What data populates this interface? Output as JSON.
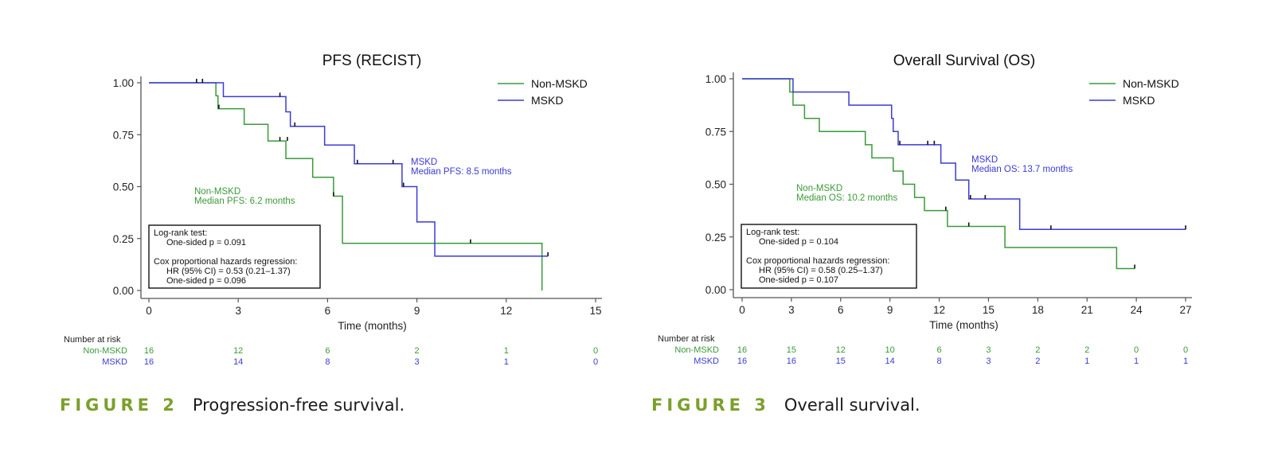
{
  "chart_data": [
    {
      "type": "line",
      "subtype": "kaplan-meier",
      "title": "PFS (RECIST)",
      "xlabel": "Time (months)",
      "ylabel": "",
      "xlim": [
        0,
        15
      ],
      "ylim": [
        0,
        1
      ],
      "xticks": [
        "0",
        "3",
        "6",
        "9",
        "12",
        "15"
      ],
      "xtick_values": [
        0,
        3,
        6,
        9,
        12,
        15
      ],
      "yticks": [
        "0.00",
        "0.25",
        "0.50",
        "0.75",
        "1.00"
      ],
      "ytick_values": [
        0,
        0.25,
        0.5,
        0.75,
        1.0
      ],
      "grid": false,
      "legend": {
        "position": "top-right",
        "entries": [
          "Non-MSKD",
          "MSKD"
        ]
      },
      "series": [
        {
          "name": "Non-MSKD",
          "color": "#3a9a3a",
          "steps": [
            [
              0,
              1.0
            ],
            [
              2.25,
              0.9375
            ],
            [
              2.32,
              0.875
            ],
            [
              3.2,
              0.8
            ],
            [
              4.0,
              0.72
            ],
            [
              4.6,
              0.635
            ],
            [
              5.5,
              0.545
            ],
            [
              6.2,
              0.454
            ],
            [
              6.5,
              0.227
            ],
            [
              13.2,
              0.0
            ]
          ],
          "end": 13.2,
          "censored": [
            [
              2.35,
              0.875
            ],
            [
              4.4,
              0.72
            ],
            [
              4.65,
              0.72
            ],
            [
              6.2,
              0.454
            ],
            [
              10.8,
              0.227
            ]
          ],
          "annotation": [
            "Non-MSKD",
            "Median PFS: 6.2 months"
          ]
        },
        {
          "name": "MSKD",
          "color": "#3b3bd4",
          "steps": [
            [
              0,
              1.0
            ],
            [
              2.5,
              0.9333
            ],
            [
              4.6,
              0.86
            ],
            [
              4.75,
              0.79
            ],
            [
              5.9,
              0.7
            ],
            [
              6.9,
              0.61
            ],
            [
              8.5,
              0.5
            ],
            [
              9.0,
              0.33
            ],
            [
              9.6,
              0.165
            ]
          ],
          "end": 13.4,
          "censored": [
            [
              1.6,
              1.0
            ],
            [
              1.8,
              1.0
            ],
            [
              4.4,
              0.9333
            ],
            [
              4.9,
              0.79
            ],
            [
              7.0,
              0.61
            ],
            [
              8.2,
              0.61
            ],
            [
              8.55,
              0.5
            ],
            [
              13.4,
              0.165
            ]
          ],
          "annotation": [
            "MSKD",
            "Median PFS: 8.5 months"
          ]
        }
      ],
      "stats_box": [
        "Log-rank test:",
        "One-sided p = 0.091",
        "Cox proportional hazards regression:",
        "HR (95% CI) = 0.53 (0.21–1.37)",
        "One-sided p = 0.096"
      ],
      "risk_table": {
        "title": "Number at risk",
        "rows": [
          {
            "label": "Non-MSKD",
            "values": [
              "16",
              "12",
              "6",
              "2",
              "1",
              "0"
            ]
          },
          {
            "label": "MSKD",
            "values": [
              "16",
              "14",
              "8",
              "3",
              "1",
              "0"
            ]
          }
        ]
      },
      "caption": {
        "figure": "FIGURE 2",
        "text": "Progression-free survival."
      }
    },
    {
      "type": "line",
      "subtype": "kaplan-meier",
      "title": "Overall Survival (OS)",
      "xlabel": "Time (months)",
      "ylabel": "",
      "xlim": [
        0,
        27
      ],
      "ylim": [
        0,
        1
      ],
      "xticks": [
        "0",
        "3",
        "6",
        "9",
        "12",
        "15",
        "18",
        "21",
        "24",
        "27"
      ],
      "xtick_values": [
        0,
        3,
        6,
        9,
        12,
        15,
        18,
        21,
        24,
        27
      ],
      "yticks": [
        "0.00",
        "0.25",
        "0.50",
        "0.75",
        "1.00"
      ],
      "ytick_values": [
        0,
        0.25,
        0.5,
        0.75,
        1.0
      ],
      "grid": false,
      "legend": {
        "position": "top-right",
        "entries": [
          "Non-MSKD",
          "MSKD"
        ]
      },
      "series": [
        {
          "name": "Non-MSKD",
          "color": "#3a9a3a",
          "steps": [
            [
              0,
              1.0
            ],
            [
              2.9,
              0.9375
            ],
            [
              3.1,
              0.875
            ],
            [
              3.8,
              0.8125
            ],
            [
              4.7,
              0.75
            ],
            [
              7.5,
              0.6875
            ],
            [
              7.9,
              0.625
            ],
            [
              9.2,
              0.5625
            ],
            [
              9.8,
              0.5
            ],
            [
              10.5,
              0.4375
            ],
            [
              11.1,
              0.375
            ],
            [
              12.5,
              0.3
            ],
            [
              16.0,
              0.2
            ],
            [
              22.8,
              0.1
            ]
          ],
          "end": 23.9,
          "censored": [
            [
              12.4,
              0.375
            ],
            [
              13.8,
              0.3
            ],
            [
              23.9,
              0.1
            ]
          ],
          "annotation": [
            "Non-MSKD",
            "Median OS: 10.2 months"
          ]
        },
        {
          "name": "MSKD",
          "color": "#3b3bd4",
          "steps": [
            [
              0,
              1.0
            ],
            [
              3.1,
              0.9375
            ],
            [
              6.5,
              0.875
            ],
            [
              9.1,
              0.8125
            ],
            [
              9.2,
              0.75
            ],
            [
              9.5,
              0.6875
            ],
            [
              12.1,
              0.6
            ],
            [
              13.0,
              0.52
            ],
            [
              13.8,
              0.43
            ],
            [
              16.9,
              0.286
            ]
          ],
          "end": 27.0,
          "censored": [
            [
              9.6,
              0.6875
            ],
            [
              11.3,
              0.6875
            ],
            [
              11.7,
              0.6875
            ],
            [
              13.9,
              0.43
            ],
            [
              14.8,
              0.43
            ],
            [
              18.8,
              0.286
            ],
            [
              27.0,
              0.286
            ]
          ],
          "annotation": [
            "MSKD",
            "Median OS: 13.7 months"
          ]
        }
      ],
      "stats_box": [
        "Log-rank test:",
        "One-sided p = 0.104",
        "Cox proportional hazards regression:",
        "HR (95% CI) = 0.58 (0.25–1.37)",
        "One-sided p = 0.107"
      ],
      "risk_table": {
        "title": "Number at risk",
        "rows": [
          {
            "label": "Non-MSKD",
            "values": [
              "16",
              "15",
              "12",
              "10",
              "6",
              "3",
              "2",
              "2",
              "0",
              "0"
            ]
          },
          {
            "label": "MSKD",
            "values": [
              "16",
              "16",
              "15",
              "14",
              "8",
              "3",
              "2",
              "1",
              "1",
              "1"
            ]
          }
        ]
      },
      "caption": {
        "figure": "FIGURE 3",
        "text": "Overall survival."
      }
    }
  ]
}
